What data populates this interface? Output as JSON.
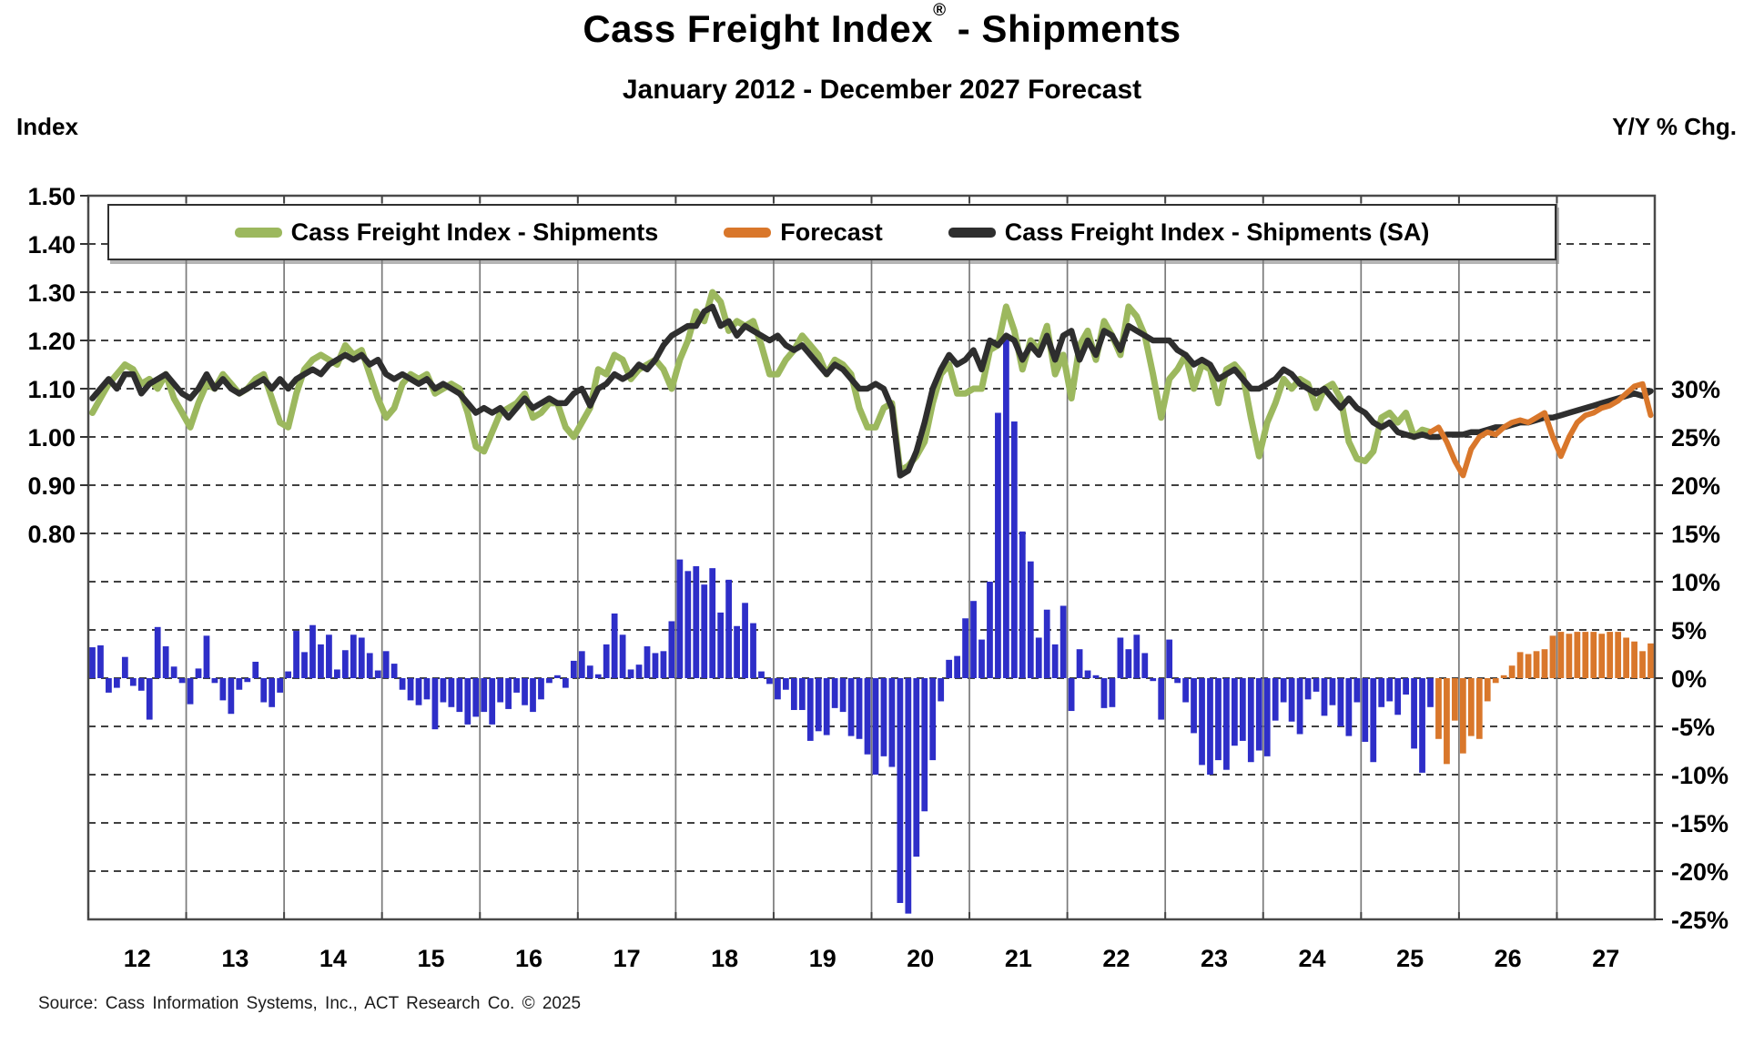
{
  "title": {
    "main": "Cass Freight Index",
    "registered": "®",
    "suffix": "- Shipments"
  },
  "subtitle": "January 2012 - December 2027 Forecast",
  "left_axis_title": "Index",
  "right_axis_title": "Y/Y % Chg.",
  "source": "Source: Cass Information Systems, Inc., ACT Research Co. © 2025",
  "legend": {
    "items": [
      {
        "label": "Cass Freight Index - Shipments",
        "color": "#9cb85e"
      },
      {
        "label": "Forecast",
        "color": "#d9772b"
      },
      {
        "label": "Cass Freight Index - Shipments (SA)",
        "color": "#2e2e2e"
      }
    ]
  },
  "colors": {
    "shipments_line": "#9cb85e",
    "forecast_line": "#d9772b",
    "sa_line": "#2e2e2e",
    "actual_bars": "#2e2ec8",
    "forecast_bars": "#d9772b",
    "gridline": "#000000",
    "year_gridline": "#7a7a7a",
    "plot_border": "#4a4a4a"
  },
  "chart_data": {
    "type": "line+bar combo, dual axis, monthly Jan 2012 - Dec 2027",
    "x_year_labels": [
      "12",
      "13",
      "14",
      "15",
      "16",
      "17",
      "18",
      "19",
      "20",
      "21",
      "22",
      "23",
      "24",
      "25",
      "26",
      "27"
    ],
    "left_axis_ticks": [
      "1.50",
      "1.40",
      "1.30",
      "1.20",
      "1.10",
      "1.00",
      "0.90",
      "0.80"
    ],
    "right_axis_ticks": [
      "30%",
      "25%",
      "20%",
      "15%",
      "10%",
      "5%",
      "0%",
      "-5%",
      "-10%",
      "-15%",
      "-20%",
      "-25%"
    ],
    "left_axis_label": "Index",
    "right_axis_label": "Y/Y % Chg.",
    "axis_alignment_note": "index 1.10 aligns with 30%; each 0.10 index = 5 pct; grid drawn every 0.05-index/5-pct step",
    "grid": "horizontal dashed black lines; vertical gray lines at year boundaries",
    "legend_position": "top inside plot, boxed",
    "series": [
      {
        "name": "Cass Freight Index - Shipments",
        "type": "line",
        "axis": "left",
        "color": "#9cb85e",
        "start": "2012-01",
        "start_index": 0,
        "values": [
          1.05,
          1.08,
          1.11,
          1.13,
          1.15,
          1.14,
          1.11,
          1.12,
          1.1,
          1.13,
          1.08,
          1.05,
          1.02,
          1.07,
          1.11,
          1.1,
          1.13,
          1.11,
          1.09,
          1.1,
          1.12,
          1.13,
          1.08,
          1.03,
          1.02,
          1.09,
          1.14,
          1.16,
          1.17,
          1.16,
          1.15,
          1.19,
          1.17,
          1.18,
          1.13,
          1.08,
          1.04,
          1.06,
          1.11,
          1.13,
          1.12,
          1.13,
          1.09,
          1.1,
          1.11,
          1.1,
          1.05,
          0.98,
          0.97,
          1.01,
          1.05,
          1.06,
          1.07,
          1.09,
          1.04,
          1.05,
          1.07,
          1.07,
          1.02,
          1.0,
          1.03,
          1.06,
          1.14,
          1.13,
          1.17,
          1.16,
          1.12,
          1.14,
          1.15,
          1.16,
          1.14,
          1.1,
          1.16,
          1.2,
          1.26,
          1.24,
          1.3,
          1.28,
          1.22,
          1.24,
          1.23,
          1.24,
          1.19,
          1.13,
          1.13,
          1.16,
          1.18,
          1.21,
          1.19,
          1.17,
          1.13,
          1.16,
          1.15,
          1.13,
          1.06,
          1.02,
          1.02,
          1.06,
          1.07,
          0.93,
          0.94,
          0.96,
          0.99,
          1.07,
          1.13,
          1.15,
          1.09,
          1.09,
          1.1,
          1.1,
          1.18,
          1.19,
          1.27,
          1.22,
          1.14,
          1.2,
          1.18,
          1.23,
          1.13,
          1.17,
          1.08,
          1.19,
          1.22,
          1.16,
          1.24,
          1.21,
          1.17,
          1.27,
          1.25,
          1.21,
          1.13,
          1.04,
          1.12,
          1.14,
          1.17,
          1.1,
          1.15,
          1.14,
          1.07,
          1.14,
          1.15,
          1.13,
          1.04,
          0.96,
          1.03,
          1.07,
          1.12,
          1.1,
          1.12,
          1.11,
          1.06,
          1.1,
          1.11,
          1.08,
          0.99,
          0.955,
          0.95,
          0.97,
          1.04,
          1.05,
          1.03,
          1.05,
          1.0,
          1.015,
          1.01
        ]
      },
      {
        "name": "Forecast",
        "type": "line",
        "axis": "left",
        "color": "#d9772b",
        "start": "2025-09",
        "start_index": 164,
        "values": [
          1.01,
          1.02,
          0.99,
          0.95,
          0.92,
          0.975,
          1.0,
          1.01,
          1.005,
          1.02,
          1.03,
          1.035,
          1.03,
          1.04,
          1.05,
          1.0,
          0.96,
          1.0,
          1.03,
          1.045,
          1.05,
          1.06,
          1.065,
          1.075,
          1.09,
          1.105,
          1.11,
          1.045
        ]
      },
      {
        "name": "Cass Freight Index - Shipments (SA)",
        "type": "line",
        "axis": "left",
        "color": "#2e2e2e",
        "start": "2012-01",
        "start_index": 0,
        "values": [
          1.08,
          1.1,
          1.12,
          1.1,
          1.13,
          1.13,
          1.09,
          1.11,
          1.12,
          1.13,
          1.11,
          1.09,
          1.08,
          1.1,
          1.13,
          1.1,
          1.12,
          1.1,
          1.09,
          1.1,
          1.11,
          1.12,
          1.1,
          1.12,
          1.1,
          1.12,
          1.13,
          1.14,
          1.13,
          1.15,
          1.16,
          1.17,
          1.16,
          1.17,
          1.15,
          1.16,
          1.13,
          1.12,
          1.13,
          1.12,
          1.11,
          1.12,
          1.1,
          1.11,
          1.1,
          1.09,
          1.07,
          1.05,
          1.06,
          1.05,
          1.06,
          1.04,
          1.06,
          1.08,
          1.06,
          1.07,
          1.08,
          1.07,
          1.07,
          1.09,
          1.1,
          1.065,
          1.1,
          1.11,
          1.13,
          1.12,
          1.13,
          1.15,
          1.14,
          1.16,
          1.19,
          1.21,
          1.22,
          1.23,
          1.23,
          1.26,
          1.27,
          1.23,
          1.24,
          1.21,
          1.23,
          1.22,
          1.21,
          1.2,
          1.21,
          1.19,
          1.18,
          1.19,
          1.17,
          1.15,
          1.13,
          1.15,
          1.14,
          1.12,
          1.1,
          1.1,
          1.11,
          1.1,
          1.06,
          0.92,
          0.93,
          0.97,
          1.03,
          1.1,
          1.14,
          1.17,
          1.15,
          1.16,
          1.18,
          1.14,
          1.2,
          1.19,
          1.21,
          1.2,
          1.16,
          1.19,
          1.17,
          1.21,
          1.16,
          1.21,
          1.22,
          1.16,
          1.2,
          1.17,
          1.22,
          1.21,
          1.18,
          1.23,
          1.22,
          1.21,
          1.2,
          1.2,
          1.2,
          1.18,
          1.17,
          1.15,
          1.16,
          1.15,
          1.12,
          1.13,
          1.14,
          1.12,
          1.1,
          1.1,
          1.11,
          1.12,
          1.14,
          1.13,
          1.11,
          1.1,
          1.09,
          1.1,
          1.08,
          1.06,
          1.08,
          1.06,
          1.05,
          1.03,
          1.02,
          1.03,
          1.01,
          1.005,
          1.0,
          1.005,
          1.0,
          1.0,
          1.005,
          1.005,
          1.005,
          1.01,
          1.01,
          1.015,
          1.02,
          1.02,
          1.025,
          1.03,
          1.03,
          1.035,
          1.04,
          1.04,
          1.045,
          1.05,
          1.055,
          1.06,
          1.065,
          1.07,
          1.075,
          1.08,
          1.085,
          1.09,
          1.085,
          1.095
        ]
      },
      {
        "name": "Y/Y % Chg (actual)",
        "type": "bar",
        "axis": "right",
        "color": "#2e2ec8",
        "start": "2012-01",
        "start_index": 0,
        "values": [
          3.2,
          3.4,
          -1.5,
          -1.0,
          2.2,
          -0.8,
          -1.3,
          -4.3,
          5.3,
          3.3,
          1.2,
          -0.5,
          -2.7,
          1.0,
          4.4,
          -0.5,
          -2.3,
          -3.7,
          -1.2,
          -0.4,
          1.7,
          -2.5,
          -3.0,
          -1.5,
          0.7,
          4.9,
          2.7,
          5.5,
          3.5,
          4.5,
          0.9,
          2.9,
          4.5,
          4.2,
          2.6,
          0.8,
          2.8,
          1.5,
          -1.2,
          -2.3,
          -2.8,
          -2.2,
          -5.3,
          -2.5,
          -3.0,
          -3.5,
          -4.8,
          -4.0,
          -3.5,
          -4.8,
          -2.5,
          -3.2,
          -1.5,
          -2.8,
          -3.5,
          -2.2,
          -0.5,
          0.3,
          -1.0,
          1.8,
          2.8,
          1.3,
          0.4,
          3.5,
          6.7,
          4.5,
          0.9,
          1.4,
          3.3,
          2.6,
          2.8,
          5.9,
          12.3,
          11.1,
          11.6,
          9.7,
          11.4,
          6.8,
          10.2,
          5.4,
          7.8,
          5.7,
          0.7,
          -0.6,
          -2.2,
          -1.2,
          -3.3,
          -3.3,
          -6.5,
          -5.5,
          -5.9,
          -3.1,
          -3.5,
          -6.0,
          -6.3,
          -7.9,
          -10.0,
          -8.1,
          -9.2,
          -23.3,
          -24.4,
          -18.5,
          -13.8,
          -8.5,
          -2.4,
          1.9,
          2.3,
          6.2,
          8.0,
          4.0,
          10.0,
          27.5,
          35.2,
          26.6,
          15.2,
          12.1,
          4.2,
          7.1,
          3.5,
          7.5,
          -3.4,
          3.0,
          0.8,
          0.3,
          -3.1,
          -3.0,
          4.2,
          3.0,
          4.5,
          2.6,
          -0.3,
          -4.3,
          4.0,
          -0.5,
          -2.5,
          -5.7,
          -9.0,
          -10.0,
          -8.5,
          -9.5,
          -7.0,
          -6.5,
          -8.7,
          -7.5,
          -8.1,
          -4.4,
          -2.5,
          -4.5,
          -5.8,
          -2.2,
          -1.4,
          -3.9,
          -2.8,
          -5.0,
          -6.0,
          -2.5,
          -6.6,
          -8.7,
          -3.0,
          -2.4,
          -3.8,
          -1.7,
          -7.3,
          -9.8,
          -3.0
        ]
      },
      {
        "name": "Y/Y % Chg (forecast)",
        "type": "bar",
        "axis": "right",
        "color": "#d9772b",
        "start": "2025-10",
        "start_index": 165,
        "values": [
          -6.3,
          -8.9,
          -4.4,
          -7.8,
          -6.0,
          -6.3,
          -2.4,
          -0.5,
          0.3,
          1.3,
          2.7,
          2.5,
          2.8,
          3.0,
          4.4,
          4.8,
          4.6,
          4.8,
          4.8,
          4.8,
          4.6,
          4.8,
          4.8,
          4.2,
          3.8,
          2.8,
          3.6
        ]
      }
    ]
  }
}
